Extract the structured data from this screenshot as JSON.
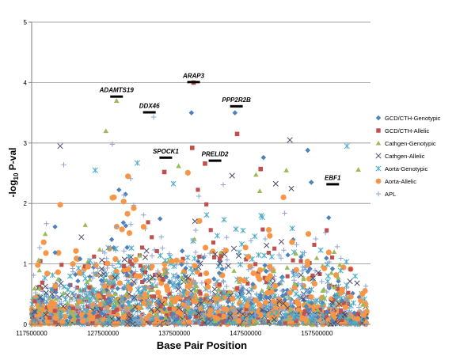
{
  "chart_data": {
    "type": "scatter",
    "xlabel": "Base Pair Position",
    "ylabel_main": "-log",
    "ylabel_sub": "10",
    "ylabel_tail": " P-val",
    "xlim": [
      117500000,
      165000000
    ],
    "ylim": [
      0,
      5
    ],
    "x_ticks": [
      117500000,
      127500000,
      137500000,
      147500000,
      157500000
    ],
    "x_tick_labels": [
      "117500000",
      "127500000",
      "137500000",
      "147500000",
      "157500000"
    ],
    "y_ticks": [
      0,
      1,
      2,
      3,
      4,
      5
    ],
    "y_tick_labels": [
      "0",
      "1",
      "2",
      "3",
      "4",
      "5"
    ],
    "grid": "horizontal",
    "legend_position": "right",
    "series": [
      {
        "name": "GCD/CTH-Genotypic",
        "marker": "diamond",
        "color": "#4F81BD"
      },
      {
        "name": "GCD/CTH-Allelic",
        "marker": "square",
        "color": "#C0504D"
      },
      {
        "name": "Cathgen-Genotypic",
        "marker": "triangle",
        "color": "#9BBB59"
      },
      {
        "name": "Cathgen-Allelic",
        "marker": "x",
        "color": "#4A4A6A"
      },
      {
        "name": "Aorta-Genotypic",
        "marker": "asterisk",
        "color": "#4BACC6"
      },
      {
        "name": "Aorta-Allelic",
        "marker": "circle",
        "color": "#F79646"
      },
      {
        "name": "APL",
        "marker": "plus",
        "color": "#8EA4D2"
      }
    ],
    "peak_points": [
      {
        "series": 1,
        "x": 140200000,
        "y": 4.0
      },
      {
        "series": 2,
        "x": 129400000,
        "y": 3.7
      },
      {
        "series": 0,
        "x": 146000000,
        "y": 3.5
      },
      {
        "series": 0,
        "x": 139900000,
        "y": 3.5
      },
      {
        "series": 6,
        "x": 134600000,
        "y": 3.43
      },
      {
        "series": 2,
        "x": 127900000,
        "y": 3.2
      },
      {
        "series": 1,
        "x": 146300000,
        "y": 3.15
      },
      {
        "series": 3,
        "x": 121500000,
        "y": 2.95
      },
      {
        "series": 4,
        "x": 161700000,
        "y": 2.95
      },
      {
        "series": 3,
        "x": 153700000,
        "y": 3.05
      },
      {
        "series": 1,
        "x": 140000000,
        "y": 2.92
      },
      {
        "series": 0,
        "x": 156200000,
        "y": 2.88
      },
      {
        "series": 6,
        "x": 128800000,
        "y": 2.98
      },
      {
        "series": 0,
        "x": 150000000,
        "y": 2.76
      },
      {
        "series": 2,
        "x": 163300000,
        "y": 2.56
      },
      {
        "series": 1,
        "x": 149600000,
        "y": 2.57
      },
      {
        "series": 4,
        "x": 132300000,
        "y": 2.67
      },
      {
        "series": 1,
        "x": 141800000,
        "y": 2.66
      },
      {
        "series": 2,
        "x": 138100000,
        "y": 2.62
      },
      {
        "series": 6,
        "x": 122000000,
        "y": 2.64
      },
      {
        "series": 3,
        "x": 145600000,
        "y": 2.46
      },
      {
        "series": 1,
        "x": 136100000,
        "y": 2.52
      },
      {
        "series": 5,
        "x": 131000000,
        "y": 2.45
      },
      {
        "series": 2,
        "x": 153200000,
        "y": 2.55
      },
      {
        "series": 4,
        "x": 126400000,
        "y": 2.55
      },
      {
        "series": 0,
        "x": 156700000,
        "y": 2.35
      }
    ],
    "gene_labels": [
      {
        "text": "ADAMTS19",
        "x": 129400000,
        "y": 3.84
      },
      {
        "text": "ARAP3",
        "x": 140200000,
        "y": 4.08
      },
      {
        "text": "DDX46",
        "x": 134000000,
        "y": 3.58
      },
      {
        "text": "PPP2R2B",
        "x": 146200000,
        "y": 3.68
      },
      {
        "text": "SPOCK1",
        "x": 136300000,
        "y": 2.83
      },
      {
        "text": "PRELID2",
        "x": 143200000,
        "y": 2.78
      },
      {
        "text": "EBF1",
        "x": 159700000,
        "y": 2.39
      }
    ]
  }
}
